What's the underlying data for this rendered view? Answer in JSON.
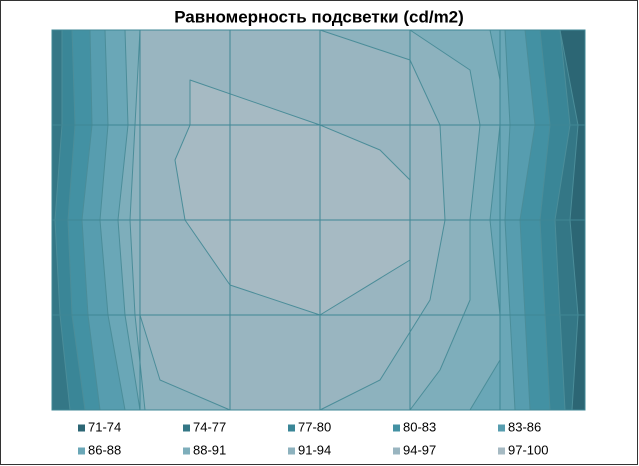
{
  "chart_data": {
    "type": "contour",
    "title": "Равномерность подсветки (cd/m2)",
    "series": [
      {
        "name": "71-74",
        "color": "#2c6674"
      },
      {
        "name": "74-77",
        "color": "#347786"
      },
      {
        "name": "77-80",
        "color": "#3a8697"
      },
      {
        "name": "80-83",
        "color": "#4391a3"
      },
      {
        "name": "83-86",
        "color": "#579daf"
      },
      {
        "name": "86-88",
        "color": "#6aa7b7"
      },
      {
        "name": "88-91",
        "color": "#7eaebb"
      },
      {
        "name": "91-94",
        "color": "#8db2be"
      },
      {
        "name": "94-97",
        "color": "#99b5c0"
      },
      {
        "name": "97-100",
        "color": "#a6bac3"
      }
    ]
  }
}
